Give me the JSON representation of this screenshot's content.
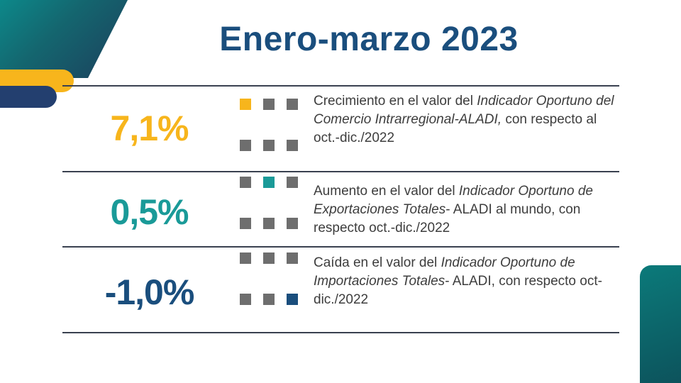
{
  "title": "Enero-marzo 2023",
  "colors": {
    "yellow": "#f7b51c",
    "teal": "#1a9a98",
    "navy": "#1a4e7d",
    "dot_gray": "#6e6e6e",
    "rule": "#3a4150"
  },
  "rows": [
    {
      "value": "7,1%",
      "value_color": "yellow",
      "highlight_dot": 0,
      "desc_parts": [
        {
          "text": "Crecimiento en el valor del ",
          "italic": false
        },
        {
          "text": "Indicador Oportuno del Comercio Intrarregional-ALADI,",
          "italic": true
        },
        {
          "text": " con respecto al oct.-dic./2022",
          "italic": false
        }
      ]
    },
    {
      "value": "0,5%",
      "value_color": "teal",
      "highlight_dot": 1,
      "desc_parts": [
        {
          "text": "Aumento en el valor del ",
          "italic": false
        },
        {
          "text": "Indicador Oportuno de  Exportaciones Totales",
          "italic": true
        },
        {
          "text": "- ALADI al mundo, con respecto oct.-dic./2022",
          "italic": false
        }
      ]
    },
    {
      "value": "-1,0%",
      "value_color": "navy",
      "highlight_dot": 5,
      "desc_parts": [
        {
          "text": "Caída en el valor del  ",
          "italic": false
        },
        {
          "text": "Indicador Oportuno de  Importaciones Totales",
          "italic": true
        },
        {
          "text": "- ALADI, con respecto oct-dic./2022",
          "italic": false
        }
      ]
    }
  ]
}
